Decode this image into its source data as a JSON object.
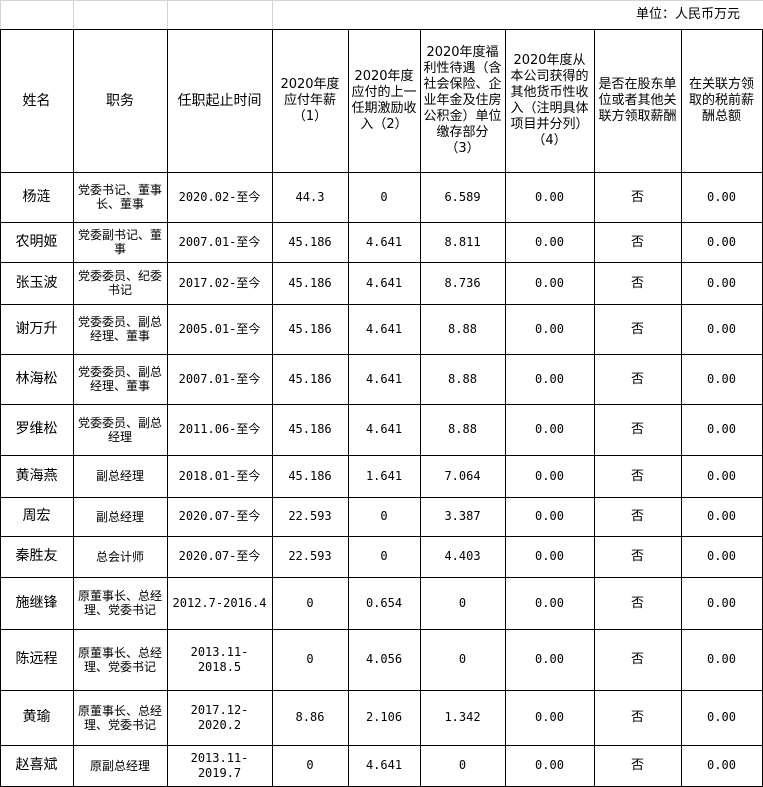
{
  "unit": "单位：人民币万元",
  "table": {
    "headers": [
      "姓名",
      "职务",
      "任职起止时间",
      "2020年度应付年薪（1）",
      "2020年度应付的上一任期激励收入（2）",
      "2020年度福利性待遇（含社会保险、企业年金及住房公积金）单位缴存部分（3）",
      "2020年度从本公司获得的其他货币性收入（注明具体项目并分列）（4）",
      "是否在股东单位或者其他关联方领取薪酬",
      "在关联方领取的税前薪酬总额"
    ],
    "rows": [
      [
        "杨涟",
        "党委书记、董事长、董事",
        "2020.02-至今",
        "44.3",
        "0",
        "6.589",
        "0.00",
        "否",
        "0.00"
      ],
      [
        "农明姬",
        "党委副书记、董事",
        "2007.01-至今",
        "45.186",
        "4.641",
        "8.811",
        "0.00",
        "否",
        "0.00"
      ],
      [
        "张玉波",
        "党委委员、纪委书记",
        "2017.02-至今",
        "45.186",
        "4.641",
        "8.736",
        "0.00",
        "否",
        "0.00"
      ],
      [
        "谢万升",
        "党委委员、副总经理、董事",
        "2005.01-至今",
        "45.186",
        "4.641",
        "8.88",
        "0.00",
        "否",
        "0.00"
      ],
      [
        "林海松",
        "党委委员、副总经理、董事",
        "2007.01-至今",
        "45.186",
        "4.641",
        "8.88",
        "0.00",
        "否",
        "0.00"
      ],
      [
        "罗维松",
        "党委委员、副总经理",
        "2011.06-至今",
        "45.186",
        "4.641",
        "8.88",
        "0.00",
        "否",
        "0.00"
      ],
      [
        "黄海燕",
        "副总经理",
        "2018.01-至今",
        "45.186",
        "1.641",
        "7.064",
        "0.00",
        "否",
        "0.00"
      ],
      [
        "周宏",
        "副总经理",
        "2020.07-至今",
        "22.593",
        "0",
        "3.387",
        "0.00",
        "否",
        "0.00"
      ],
      [
        "秦胜友",
        "总会计师",
        "2020.07-至今",
        "22.593",
        "0",
        "4.403",
        "0.00",
        "否",
        "0.00"
      ],
      [
        "施继锋",
        "原董事长、总经理、党委书记",
        "2012.7-2016.4",
        "0",
        "0.654",
        "0",
        "0.00",
        "否",
        "0.00"
      ],
      [
        "陈远程",
        "原董事长、总经理、党委书记",
        "2013.11-2018.5",
        "0",
        "4.056",
        "0",
        "0.00",
        "否",
        "0.00"
      ],
      [
        "黄瑜",
        "原董事长、总经理、党委书记",
        "2017.12-2020.2",
        "8.86",
        "2.106",
        "1.342",
        "0.00",
        "否",
        "0.00"
      ],
      [
        "赵喜斌",
        "原副总经理",
        "2013.11-2019.7",
        "0",
        "4.641",
        "0",
        "0.00",
        "否",
        "0.00"
      ]
    ]
  }
}
